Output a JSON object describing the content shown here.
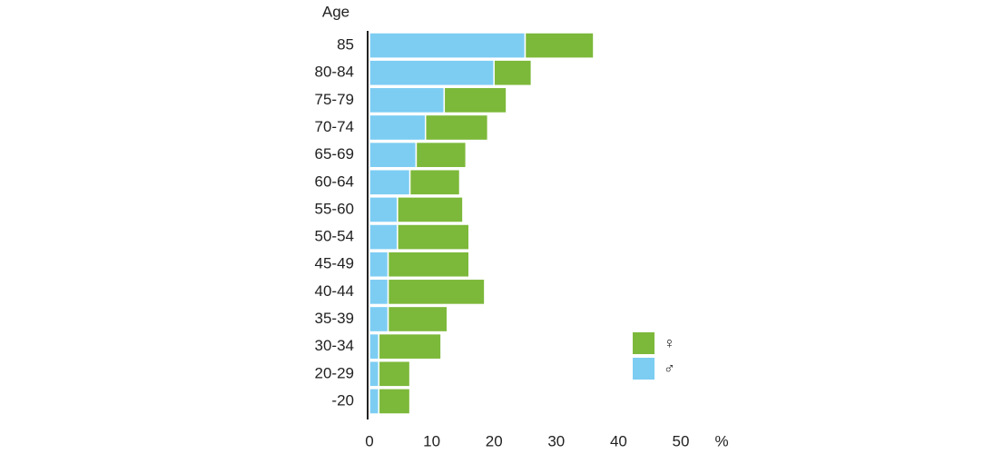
{
  "chart_data": {
    "type": "hbar-stacked",
    "y_label": "Age",
    "x_label": "%",
    "categories": [
      "85",
      "80-84",
      "75-79",
      "70-74",
      "65-69",
      "60-64",
      "55-60",
      "50-54",
      "45-49",
      "40-44",
      "35-39",
      "30-34",
      "20-29",
      "-20"
    ],
    "series": [
      {
        "name": "♂",
        "color": "#7dcdf3",
        "values": [
          25,
          20,
          12,
          9,
          7.5,
          6.5,
          4.5,
          4.5,
          3,
          3,
          3,
          1.5,
          1.5,
          1.5
        ]
      },
      {
        "name": "♀",
        "color": "#7cb83a",
        "values": [
          11,
          6,
          10,
          10,
          8,
          8,
          10.5,
          11.5,
          13,
          15.5,
          9.5,
          10,
          5,
          5
        ]
      }
    ],
    "xlim": [
      0,
      50
    ],
    "xticks": [
      0,
      10,
      20,
      30,
      40,
      50
    ],
    "grid": false
  }
}
